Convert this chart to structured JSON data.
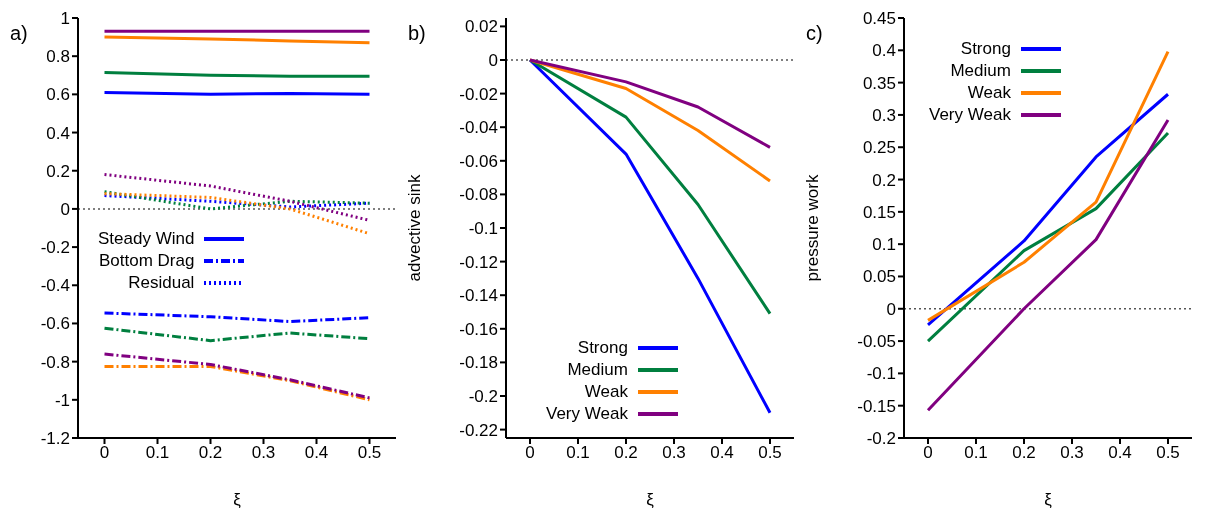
{
  "chart_data": [
    {
      "type": "line",
      "xlabel": "ξ",
      "annotations": [
        "a)"
      ],
      "x": [
        0,
        0.2,
        0.35,
        0.5
      ],
      "xlim": [
        -0.05,
        0.55
      ],
      "xticks": [
        0,
        0.1,
        0.2,
        0.3,
        0.4,
        0.5
      ],
      "ylim": [
        -1.2,
        1
      ],
      "yticks": [
        -1.2,
        -1,
        -0.8,
        -0.6,
        -0.4,
        -0.2,
        0,
        0.2,
        0.4,
        0.6,
        0.8,
        1
      ],
      "grid": false,
      "legend": "left",
      "marker": "none",
      "ref_lines": [
        {
          "axis": "y",
          "value": 0,
          "color": "#555555",
          "line_style": "dotted"
        }
      ],
      "series": [
        {
          "name": "Steady Wind",
          "color": "#0000ff",
          "line_style": "solid",
          "values": [
            0.61,
            0.6,
            0.605,
            0.6
          ]
        },
        {
          "color": "#007f3f",
          "line_style": "solid",
          "values": [
            0.715,
            0.7,
            0.695,
            0.695
          ]
        },
        {
          "color": "#ff8000",
          "line_style": "solid",
          "values": [
            0.9,
            0.89,
            0.88,
            0.87
          ]
        },
        {
          "color": "#800080",
          "line_style": "solid",
          "values": [
            0.93,
            0.93,
            0.93,
            0.93
          ]
        },
        {
          "name": "Bottom Drag",
          "color": "#0000ff",
          "line_style": "dashed",
          "values": [
            -0.545,
            -0.565,
            -0.59,
            -0.57
          ]
        },
        {
          "color": "#007f3f",
          "line_style": "dashed",
          "values": [
            -0.625,
            -0.69,
            -0.65,
            -0.68
          ]
        },
        {
          "color": "#ff8000",
          "line_style": "dashed",
          "values": [
            -0.825,
            -0.825,
            -0.9,
            -1.0
          ]
        },
        {
          "color": "#800080",
          "line_style": "dashed",
          "values": [
            -0.76,
            -0.815,
            -0.895,
            -0.99
          ]
        },
        {
          "name": "Residual",
          "color": "#0000ff",
          "line_style": "dotted",
          "values": [
            0.07,
            0.04,
            0.01,
            0.03
          ]
        },
        {
          "color": "#007f3f",
          "line_style": "dotted",
          "values": [
            0.09,
            0.0,
            0.04,
            0.03
          ]
        },
        {
          "color": "#ff8000",
          "line_style": "dotted",
          "values": [
            0.08,
            0.06,
            0.0,
            -0.13
          ]
        },
        {
          "color": "#800080",
          "line_style": "dotted",
          "values": [
            0.18,
            0.12,
            0.04,
            -0.06
          ]
        }
      ]
    },
    {
      "type": "line",
      "xlabel": "ξ",
      "ylabel": "advective sink",
      "annotations": [
        "b)"
      ],
      "x": [
        0,
        0.2,
        0.35,
        0.5
      ],
      "xlim": [
        -0.05,
        0.55
      ],
      "xticks": [
        0,
        0.1,
        0.2,
        0.3,
        0.4,
        0.5
      ],
      "ylim": [
        -0.225,
        0.025
      ],
      "yticks": [
        -0.22,
        -0.2,
        -0.18,
        -0.16,
        -0.14,
        -0.12,
        -0.1,
        -0.08,
        -0.06,
        -0.04,
        -0.02,
        0,
        0.02
      ],
      "grid": false,
      "legend": "bottom",
      "marker": "none",
      "line_style": "solid",
      "ref_lines": [
        {
          "axis": "y",
          "value": 0,
          "color": "#555555",
          "line_style": "dotted"
        }
      ],
      "series": [
        {
          "name": "Strong",
          "color": "#0000ff",
          "values": [
            0,
            -0.056,
            -0.13,
            -0.21
          ]
        },
        {
          "name": "Medium",
          "color": "#007f3f",
          "values": [
            0,
            -0.034,
            -0.086,
            -0.151
          ]
        },
        {
          "name": "Weak",
          "color": "#ff8000",
          "values": [
            0,
            -0.017,
            -0.042,
            -0.072
          ]
        },
        {
          "name": "Very Weak",
          "color": "#800080",
          "values": [
            0,
            -0.013,
            -0.028,
            -0.052
          ]
        }
      ]
    },
    {
      "type": "line",
      "xlabel": "ξ",
      "ylabel": "pressure work",
      "annotations": [
        "c)"
      ],
      "x": [
        0,
        0.2,
        0.35,
        0.5
      ],
      "xlim": [
        -0.05,
        0.55
      ],
      "xticks": [
        0,
        0.1,
        0.2,
        0.3,
        0.4,
        0.5
      ],
      "ylim": [
        -0.2,
        0.45
      ],
      "yticks": [
        -0.2,
        -0.15,
        -0.1,
        -0.05,
        0,
        0.05,
        0.1,
        0.15,
        0.2,
        0.25,
        0.3,
        0.35,
        0.4,
        0.45
      ],
      "grid": false,
      "legend": "top",
      "marker": "none",
      "line_style": "solid",
      "ref_lines": [
        {
          "axis": "y",
          "value": 0,
          "color": "#555555",
          "line_style": "dotted"
        }
      ],
      "series": [
        {
          "name": "Strong",
          "color": "#0000ff",
          "values": [
            -0.025,
            0.105,
            0.235,
            0.332
          ]
        },
        {
          "name": "Medium",
          "color": "#007f3f",
          "values": [
            -0.05,
            0.09,
            0.155,
            0.272
          ]
        },
        {
          "name": "Weak",
          "color": "#ff8000",
          "values": [
            -0.018,
            0.072,
            0.165,
            0.398
          ]
        },
        {
          "name": "Very Weak",
          "color": "#800080",
          "values": [
            -0.157,
            0.0,
            0.107,
            0.292
          ]
        }
      ]
    }
  ]
}
